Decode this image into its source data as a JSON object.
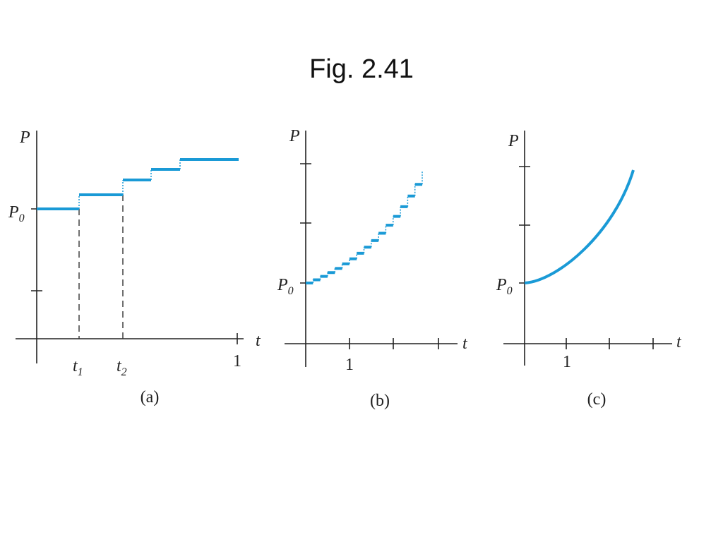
{
  "title": "Fig. 2.41",
  "panels": [
    {
      "caption": "(a)",
      "y_label": "P",
      "x_label": "t",
      "p0": {
        "base": "P",
        "sub": "0"
      },
      "t1": {
        "base": "t",
        "sub": "1"
      },
      "t2": {
        "base": "t",
        "sub": "2"
      },
      "x_tick": "1"
    },
    {
      "caption": "(b)",
      "y_label": "P",
      "x_label": "t",
      "p0": {
        "base": "P",
        "sub": "0"
      },
      "x_tick": "1"
    },
    {
      "caption": "(c)",
      "y_label": "P",
      "x_label": "t",
      "p0": {
        "base": "P",
        "sub": "0"
      },
      "x_tick": "1"
    }
  ]
}
